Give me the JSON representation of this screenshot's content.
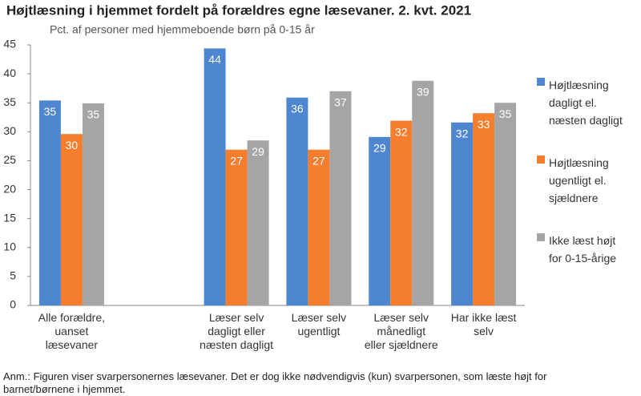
{
  "chart_data": {
    "type": "bar",
    "title": "Højtlæsning i hjemmet fordelt på forældres egne læsevaner. 2. kvt. 2021",
    "subtitle": "Pct. af personer med hjemmeboende børn på 0-15 år",
    "note": "Anm.: Figuren viser svarpersonernes læsevaner. Det er dog ikke nødvendigvis (kun) svarpersonen, som læste højt for barnet/børnene i hjemmet.",
    "categories": [
      "Alle forældre,\nuanset\nlæsevaner",
      null,
      "Læser selv\ndagligt eller\nnæsten dagligt",
      "Læser selv\nugentligt",
      "Læser selv\nmånedligt\neller sjældnere",
      "Har ikke læst\nselv"
    ],
    "series": [
      {
        "name": "Højtlæsning\ndagligt el.\nnæsten dagligt",
        "color": "#4f86d0",
        "values": [
          35.4,
          null,
          44.4,
          35.9,
          29.1,
          31.6
        ],
        "value_labels": [
          "35",
          null,
          "44",
          "36",
          "29",
          "32"
        ]
      },
      {
        "name": "Højtlæsning\nugentligt el.\nsjældnere",
        "color": "#f57e2e",
        "values": [
          29.6,
          null,
          26.9,
          26.9,
          31.9,
          33.2
        ],
        "value_labels": [
          "30",
          null,
          "27",
          "27",
          "32",
          "33"
        ]
      },
      {
        "name": "Ikke læst højt\nfor 0-15-årige",
        "color": "#a5a5a5",
        "values": [
          34.9,
          null,
          28.5,
          37.0,
          38.8,
          35.0
        ],
        "value_labels": [
          "35",
          null,
          "29",
          "37",
          "39",
          "35"
        ]
      }
    ],
    "ylim": [
      0,
      45
    ],
    "yticks": [
      0,
      5,
      10,
      15,
      20,
      25,
      30,
      35,
      40,
      45
    ],
    "grid": false,
    "legend": "right"
  }
}
